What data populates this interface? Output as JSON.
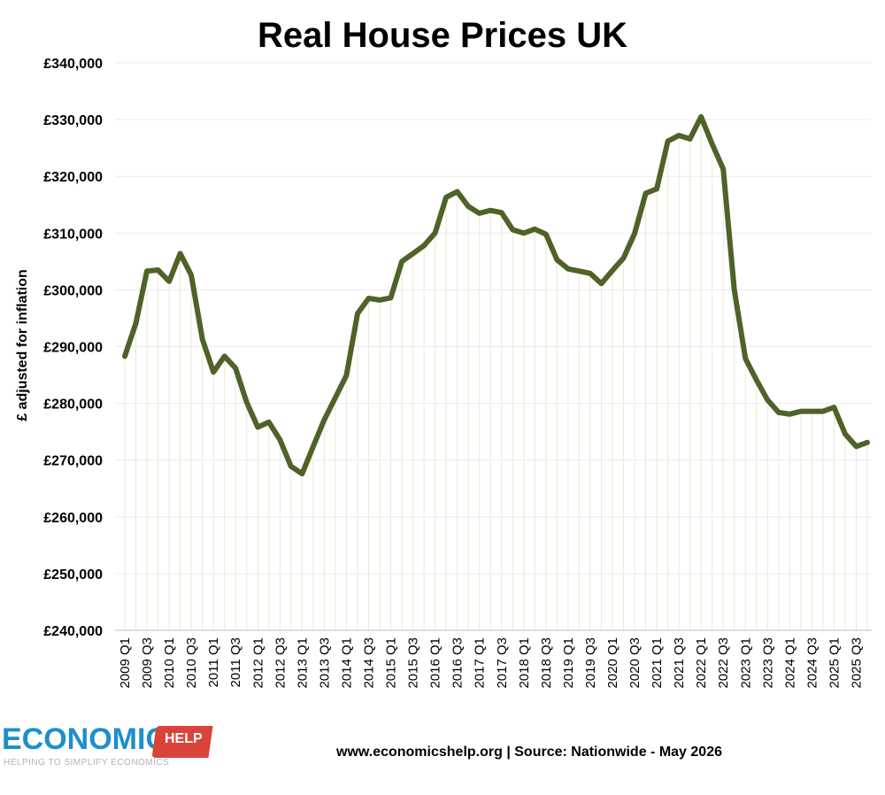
{
  "chart_data": {
    "type": "line",
    "title": "Real House Prices UK",
    "ylabel": "£ adjusted for inflation",
    "xlabel": "",
    "ylim": [
      240000,
      340000
    ],
    "yticks": [
      "£240,000",
      "£250,000",
      "£260,000",
      "£270,000",
      "£280,000",
      "£290,000",
      "£300,000",
      "£310,000",
      "£320,000",
      "£330,000",
      "£340,000"
    ],
    "ytick_values": [
      240000,
      250000,
      260000,
      270000,
      280000,
      290000,
      300000,
      310000,
      320000,
      330000,
      340000
    ],
    "x": [
      "2009 Q1",
      "2009 Q2",
      "2009 Q3",
      "2009 Q4",
      "2010 Q1",
      "2010 Q2",
      "2010 Q3",
      "2010 Q4",
      "2011 Q1",
      "2011 Q2",
      "2011 Q3",
      "2011 Q4",
      "2012 Q1",
      "2012 Q2",
      "2012 Q3",
      "2012 Q4",
      "2013 Q1",
      "2013 Q2",
      "2013 Q3",
      "2013 Q4",
      "2014 Q1",
      "2014 Q2",
      "2014 Q3",
      "2014 Q4",
      "2015 Q1",
      "2015 Q2",
      "2015 Q3",
      "2015 Q4",
      "2016 Q1",
      "2016 Q2",
      "2016 Q3",
      "2016 Q4",
      "2017 Q1",
      "2017 Q2",
      "2017 Q3",
      "2017 Q4",
      "2018 Q1",
      "2018 Q2",
      "2018 Q3",
      "2018 Q4",
      "2019 Q1",
      "2019 Q2",
      "2019 Q3",
      "2019 Q4",
      "2020 Q1",
      "2020 Q2",
      "2020 Q3",
      "2020 Q4",
      "2021 Q1",
      "2021 Q2",
      "2021 Q3",
      "2021 Q4",
      "2022 Q1",
      "2022 Q2",
      "2022 Q3",
      "2022 Q4",
      "2023 Q1",
      "2023 Q2",
      "2023 Q3",
      "2023 Q4",
      "2024 Q1",
      "2024 Q2",
      "2024 Q3",
      "2024 Q4",
      "2025 Q1",
      "2025 Q2",
      "2025 Q3",
      "2025 Q4"
    ],
    "xtick_labels_shown": [
      "2009 Q1",
      "2009 Q3",
      "2010 Q1",
      "2010 Q3",
      "2011 Q1",
      "2011 Q3",
      "2012 Q1",
      "2012 Q3",
      "2013 Q1",
      "2013 Q3",
      "2014 Q1",
      "2014 Q3",
      "2015 Q1",
      "2015 Q3",
      "2016 Q1",
      "2016 Q3",
      "2017 Q1",
      "2017 Q3",
      "2018 Q1",
      "2018 Q3",
      "2019 Q1",
      "2019 Q3",
      "2020 Q1",
      "2020 Q3",
      "2021 Q1",
      "2021 Q3",
      "2022 Q1",
      "2022 Q3",
      "2023 Q1",
      "2023 Q3",
      "2024 Q1",
      "2024 Q3",
      "2025 Q1",
      "2025 Q3"
    ],
    "series": [
      {
        "color": "#4f6228",
        "values": [
          288300,
          294100,
          303300,
          303500,
          301500,
          306400,
          302600,
          291300,
          285500,
          288300,
          286200,
          280200,
          275800,
          276700,
          273600,
          268900,
          267600,
          272400,
          277100,
          281000,
          284900,
          295800,
          298500,
          298200,
          298600,
          305000,
          306400,
          307800,
          310000,
          316300,
          317300,
          314700,
          313500,
          314000,
          313600,
          310600,
          310000,
          310700,
          309800,
          305300,
          303700,
          303300,
          302900,
          301100,
          303400,
          305600,
          309900,
          317000,
          317800,
          326200,
          327200,
          326600,
          330500,
          325700,
          321300,
          300000,
          287900,
          284100,
          280600,
          278400,
          278100,
          278600,
          278600,
          278600,
          279300,
          274600,
          272400,
          273100
        ]
      }
    ],
    "grid": "horizontal gridlines plus vertical drop lines",
    "legend": "none"
  },
  "footer": {
    "source": "www.economicshelp.org | Source: Nationwide - May 2026"
  },
  "logo": {
    "word": "ECONOMICS",
    "tag": "HELP",
    "tagline": "HELPING TO SIMPLIFY ECONOMICS",
    "primary_color": "#1d8fc9",
    "accent_color": "#d9433a"
  }
}
